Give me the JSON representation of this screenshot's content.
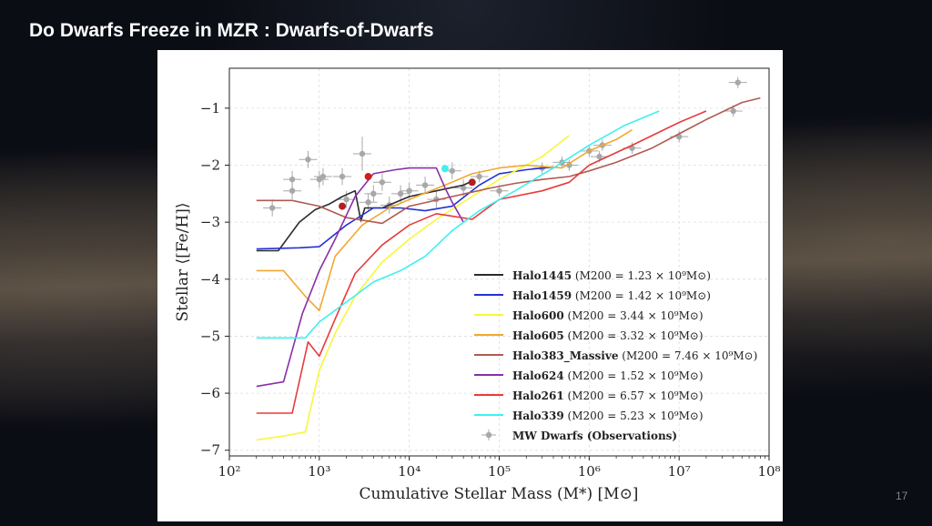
{
  "slide": {
    "title": "Do Dwarfs Freeze in MZR : Dwarfs-of-Dwarfs",
    "page_number": "17"
  },
  "colors": {
    "slide_background": "#0b0d14",
    "title_text": "#ffffff",
    "observation_points": "#a8a8a8"
  },
  "chart_data": {
    "type": "line",
    "title": "",
    "xlabel": "Cumulative Stellar Mass (M*) [M⊙]",
    "ylabel": "Stellar ⟨[Fe/H]⟩",
    "xscale": "log",
    "xlim": [
      100,
      100000000
    ],
    "ylim": [
      -7.1,
      -0.3
    ],
    "grid": true,
    "legend_position": "lower-right",
    "x_ticks": [
      {
        "value": 100,
        "label": "10²"
      },
      {
        "value": 1000,
        "label": "10³"
      },
      {
        "value": 10000,
        "label": "10⁴"
      },
      {
        "value": 100000,
        "label": "10⁵"
      },
      {
        "value": 1000000,
        "label": "10⁶"
      },
      {
        "value": 10000000,
        "label": "10⁷"
      },
      {
        "value": 100000000,
        "label": "10⁸"
      }
    ],
    "y_ticks": [
      {
        "value": -1,
        "label": "−1"
      },
      {
        "value": -2,
        "label": "−2"
      },
      {
        "value": -3,
        "label": "−3"
      },
      {
        "value": -4,
        "label": "−4"
      },
      {
        "value": -5,
        "label": "−5"
      },
      {
        "value": -6,
        "label": "−6"
      },
      {
        "value": -7,
        "label": "−7"
      }
    ],
    "series": [
      {
        "name": "Halo1445",
        "mass_label": "(M200 = 1.23 × 10⁹M⊙)",
        "color": "#2b2b2b",
        "x": [
          200,
          350,
          600,
          900,
          1300,
          1800,
          2500,
          2900,
          3200,
          5000,
          10000,
          20000,
          40000,
          50000
        ],
        "y": [
          -3.5,
          -3.5,
          -3.0,
          -2.78,
          -2.68,
          -2.55,
          -2.45,
          -2.98,
          -2.75,
          -2.75,
          -2.55,
          -2.45,
          -2.35,
          -2.28
        ]
      },
      {
        "name": "Halo1459",
        "mass_label": "(M200 = 1.42 × 10⁹M⊙)",
        "color": "#2430d6",
        "x": [
          200,
          600,
          1000,
          2000,
          4000,
          8000,
          15000,
          30000,
          60000,
          100000,
          200000,
          400000
        ],
        "y": [
          -3.47,
          -3.45,
          -3.43,
          -3.05,
          -2.75,
          -2.75,
          -2.8,
          -2.72,
          -2.35,
          -2.15,
          -2.08,
          -2.03
        ]
      },
      {
        "name": "Halo600",
        "mass_label": "(M200 = 3.44 × 10⁹M⊙)",
        "color": "#f7f73a",
        "x": [
          200,
          400,
          700,
          1000,
          1500,
          2500,
          5000,
          10000,
          20000,
          50000,
          100000,
          300000,
          600000
        ],
        "y": [
          -6.82,
          -6.75,
          -6.68,
          -5.6,
          -4.95,
          -4.3,
          -3.7,
          -3.3,
          -2.95,
          -2.55,
          -2.25,
          -1.85,
          -1.48
        ]
      },
      {
        "name": "Halo605",
        "mass_label": "(M200 = 3.32 × 10⁹M⊙)",
        "color": "#f0a830",
        "x": [
          200,
          400,
          700,
          1000,
          1500,
          3000,
          6000,
          12000,
          25000,
          50000,
          100000,
          200000,
          500000,
          1000000,
          2000000,
          3000000
        ],
        "y": [
          -3.85,
          -3.85,
          -4.3,
          -4.55,
          -3.6,
          -3.05,
          -2.75,
          -2.55,
          -2.35,
          -2.15,
          -2.05,
          -2.0,
          -2.05,
          -1.75,
          -1.55,
          -1.38
        ]
      },
      {
        "name": "Halo383_Massive",
        "mass_label": "(M200 = 7.46 × 10⁹M⊙)",
        "color": "#b05a52",
        "x": [
          200,
          500,
          1000,
          2000,
          5000,
          10000,
          30000,
          80000,
          150000,
          300000,
          600000,
          1000000,
          2000000,
          5000000,
          10000000,
          20000000,
          50000000,
          80000000
        ],
        "y": [
          -2.62,
          -2.62,
          -2.72,
          -2.92,
          -3.02,
          -2.72,
          -2.55,
          -2.4,
          -2.32,
          -2.25,
          -2.2,
          -2.1,
          -1.95,
          -1.7,
          -1.45,
          -1.2,
          -0.9,
          -0.82
        ]
      },
      {
        "name": "Halo624",
        "mass_label": "(M200 = 1.52 × 10⁹M⊙)",
        "color": "#8a2fa8",
        "x": [
          200,
          400,
          650,
          1000,
          1500,
          2500,
          4000,
          7000,
          10000,
          15000,
          20000,
          25000,
          30000,
          40000
        ],
        "y": [
          -5.88,
          -5.8,
          -4.6,
          -3.85,
          -3.3,
          -2.55,
          -2.15,
          -2.08,
          -2.05,
          -2.05,
          -2.05,
          -2.4,
          -2.65,
          -3.0
        ]
      },
      {
        "name": "Halo261",
        "mass_label": "(M200 = 6.57 × 10⁹M⊙)",
        "color": "#e83a3a",
        "x": [
          200,
          500,
          750,
          1000,
          1500,
          2500,
          5000,
          10000,
          20000,
          50000,
          100000,
          300000,
          600000,
          1000000,
          3000000,
          10000000,
          20000000
        ],
        "y": [
          -6.35,
          -6.35,
          -5.1,
          -5.35,
          -4.7,
          -3.9,
          -3.4,
          -3.05,
          -2.85,
          -2.95,
          -2.6,
          -2.45,
          -2.3,
          -2.0,
          -1.65,
          -1.25,
          -1.05
        ]
      },
      {
        "name": "Halo339",
        "mass_label": "(M200 = 5.23 × 10⁹M⊙)",
        "color": "#3ef0f0",
        "x": [
          200,
          400,
          700,
          1000,
          2000,
          4000,
          8000,
          15000,
          30000,
          60000,
          150000,
          400000,
          1000000,
          2500000,
          6000000
        ],
        "y": [
          -5.03,
          -5.03,
          -5.03,
          -4.75,
          -4.4,
          -4.05,
          -3.85,
          -3.6,
          -3.15,
          -2.8,
          -2.45,
          -2.05,
          -1.65,
          -1.3,
          -1.05
        ]
      }
    ],
    "observations": {
      "name": "MW Dwarfs (Observations)",
      "x": [
        300,
        500,
        500,
        750,
        1000,
        1100,
        1800,
        2000,
        3000,
        3500,
        4000,
        5000,
        6000,
        8000,
        10000,
        15000,
        20000,
        30000,
        40000,
        60000,
        100000,
        300000,
        500000,
        600000,
        1000000,
        1300000,
        1400000,
        3000000,
        10000000,
        40000000,
        45000000
      ],
      "y": [
        -2.75,
        -2.25,
        -2.45,
        -1.9,
        -2.25,
        -2.2,
        -2.2,
        -2.6,
        -1.8,
        -2.65,
        -2.5,
        -2.3,
        -2.7,
        -2.5,
        -2.45,
        -2.35,
        -2.6,
        -2.1,
        -2.4,
        -2.2,
        -2.45,
        -2.05,
        -1.95,
        -2.0,
        -1.75,
        -1.85,
        -1.65,
        -1.7,
        -1.5,
        -1.05,
        -0.55
      ],
      "error": [
        0.15,
        0.15,
        0.15,
        0.15,
        0.15,
        0.15,
        0.15,
        0.15,
        0.3,
        0.15,
        0.15,
        0.15,
        0.15,
        0.15,
        0.15,
        0.15,
        0.15,
        0.15,
        0.15,
        0.1,
        0.1,
        0.1,
        0.1,
        0.1,
        0.1,
        0.1,
        0.1,
        0.1,
        0.1,
        0.1,
        0.1
      ]
    },
    "highlights": [
      {
        "x": 1800,
        "y": -2.72,
        "color": "#b02020"
      },
      {
        "x": 3500,
        "y": -2.2,
        "color": "#d41c1c"
      },
      {
        "x": 25000,
        "y": -2.06,
        "color": "#3ef0f0"
      },
      {
        "x": 50000,
        "y": -2.3,
        "color": "#b02020"
      }
    ]
  }
}
